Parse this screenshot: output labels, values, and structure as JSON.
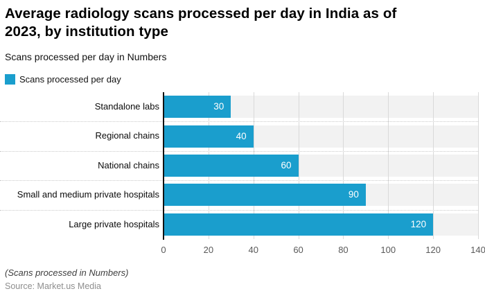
{
  "header": {
    "title_lines": [
      "Average radiology scans processed per day in India as of",
      "2023, by institution type"
    ],
    "subtitle": "Scans processed per day in Numbers"
  },
  "legend": {
    "label": "Scans processed per day",
    "color": "#1a9ecd"
  },
  "chart_data": {
    "type": "bar",
    "orientation": "horizontal",
    "title": "Average radiology scans processed per day in India as of 2023, by institution type",
    "subtitle": "Scans processed per day in Numbers",
    "categories": [
      "Standalone labs",
      "Regional chains",
      "National chains",
      "Small and medium private hospitals",
      "Large private hospitals"
    ],
    "values": [
      30,
      40,
      60,
      90,
      120
    ],
    "series_name": "Scans processed per day",
    "xlabel": "",
    "ylabel": "",
    "xlim": [
      0,
      140
    ],
    "xticks": [
      0,
      20,
      40,
      60,
      80,
      100,
      120,
      140
    ],
    "grid": true,
    "legend_position": "top-left",
    "bar_color": "#1a9ecd",
    "band_color": "#f2f2f2",
    "gridline_color": "#d9d9d9",
    "value_label_color": "#ffffff"
  },
  "footer": {
    "note": "(Scans processed in Numbers)",
    "source": "Source: Market.us Media"
  }
}
